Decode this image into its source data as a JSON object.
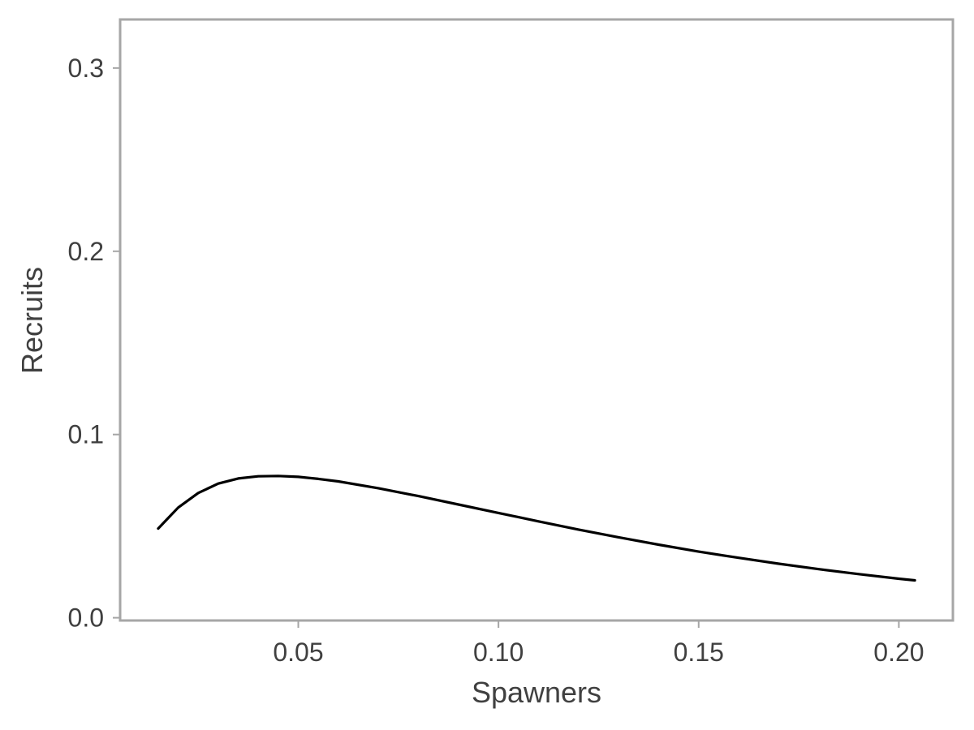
{
  "chart_data": {
    "type": "line",
    "title": "",
    "xlabel": "Spawners",
    "ylabel": "Recruits",
    "xlim": [
      0.0055,
      0.2135
    ],
    "ylim": [
      -0.0015,
      0.3265
    ],
    "grid": false,
    "x_ticks": [
      0.05,
      0.1,
      0.15,
      0.2
    ],
    "x_tick_labels": [
      "0.05",
      "0.10",
      "0.15",
      "0.20"
    ],
    "y_ticks": [
      0.0,
      0.1,
      0.2,
      0.3
    ],
    "y_tick_labels": [
      "0.0",
      "0.1",
      "0.2",
      "0.3"
    ],
    "series": [
      {
        "color": "#000000",
        "x": [
          0.015,
          0.02,
          0.025,
          0.03,
          0.035,
          0.04,
          0.045,
          0.05,
          0.055,
          0.06,
          0.07,
          0.08,
          0.09,
          0.1,
          0.11,
          0.12,
          0.13,
          0.14,
          0.15,
          0.16,
          0.17,
          0.18,
          0.19,
          0.2,
          0.204
        ],
        "y": [
          0.0487,
          0.0601,
          0.0681,
          0.0732,
          0.076,
          0.0772,
          0.0774,
          0.0769,
          0.0758,
          0.0744,
          0.0707,
          0.0664,
          0.0618,
          0.0572,
          0.0526,
          0.0481,
          0.0439,
          0.0399,
          0.0361,
          0.0327,
          0.0295,
          0.0265,
          0.0238,
          0.0213,
          0.0204
        ]
      }
    ]
  }
}
